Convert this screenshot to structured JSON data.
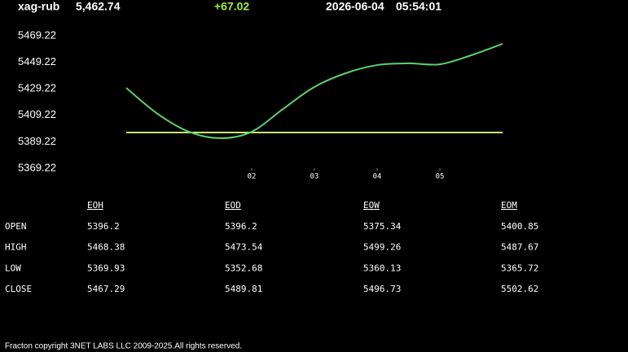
{
  "header": {
    "symbol": "xag-rub",
    "price": "5,462.74",
    "change": "+67.02",
    "date": "2026-06-04",
    "time": "05:54:01"
  },
  "chart_data": {
    "type": "line",
    "categories": [
      null,
      null,
      null,
      null,
      "02",
      null,
      "03",
      null,
      "04",
      null,
      "05",
      null,
      null
    ],
    "series": [
      {
        "color": "#5cd16e",
        "values": [
          5429.9,
          5410.3,
          5396.8,
          5391.9,
          5396.8,
          5414.0,
          5430.6,
          5441.0,
          5447.1,
          5448.4,
          5447.7,
          5454.5,
          5463.1
        ]
      }
    ],
    "ref_line": {
      "value": 5396.2,
      "color": "#c8e66e"
    },
    "ylim": [
      5369.22,
      5469.22
    ],
    "yticks": [
      5369.22,
      5389.22,
      5409.22,
      5429.22,
      5449.22,
      5469.22
    ]
  },
  "table": {
    "columns": [
      "EOH",
      "EOD",
      "EOW",
      "EOM"
    ],
    "rows": [
      [
        "OPEN",
        "5396.2",
        "5396.2",
        "5375.34",
        "5400.85"
      ],
      [
        "HIGH",
        "5468.38",
        "5473.54",
        "5499.26",
        "5487.67"
      ],
      [
        "LOW",
        "5369.93",
        "5352.68",
        "5360.13",
        "5365.72"
      ],
      [
        "CLOSE",
        "5467.29",
        "5489.81",
        "5496.73",
        "5502.62"
      ]
    ]
  },
  "footer": "Fracton copyright 3NET LABS LLC 2009-2025.All rights reserved."
}
